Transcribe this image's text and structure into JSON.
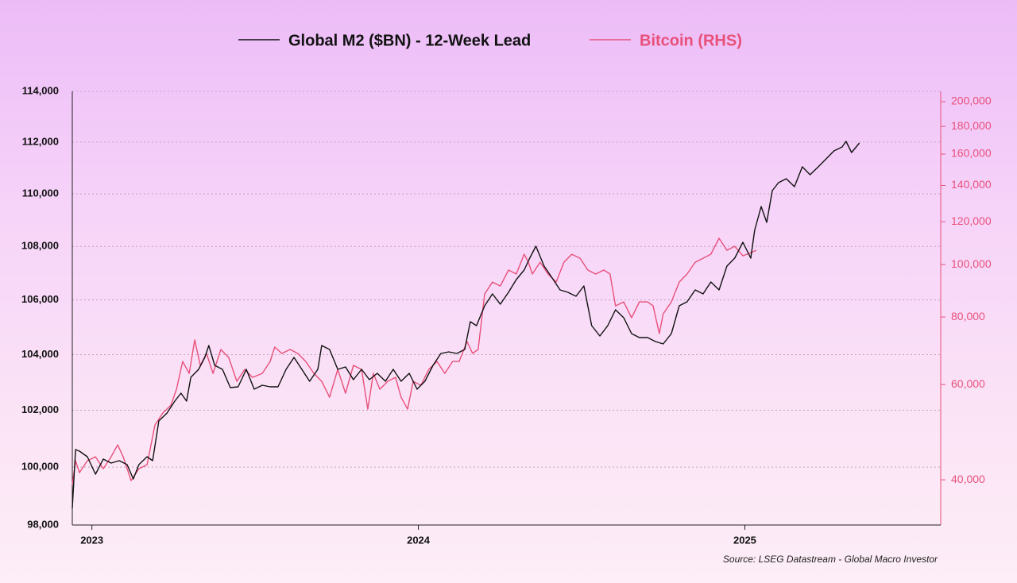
{
  "chart_data": {
    "type": "line",
    "legend": "top",
    "grid": true,
    "ylog": true,
    "y2log": true,
    "xlim": [
      2022.94,
      2025.6
    ],
    "xticks": [
      2023,
      2024,
      2025
    ],
    "ylim": [
      98000,
      114000
    ],
    "yticks": [
      {
        "value": 98000,
        "label": "98,000"
      },
      {
        "value": 100000,
        "label": "100,000"
      },
      {
        "value": 102000,
        "label": "102,000"
      },
      {
        "value": 104000,
        "label": "104,000"
      },
      {
        "value": 106000,
        "label": "106,000"
      },
      {
        "value": 108000,
        "label": "108,000"
      },
      {
        "value": 110000,
        "label": "110,000"
      },
      {
        "value": 112000,
        "label": "112,000"
      },
      {
        "value": 114000,
        "label": "114,000"
      }
    ],
    "y2lim": [
      33000,
      209000
    ],
    "y2ticks": [
      {
        "value": 40000,
        "label": "40,000"
      },
      {
        "value": 60000,
        "label": "60,000"
      },
      {
        "value": 80000,
        "label": "80,000"
      },
      {
        "value": 100000,
        "label": "100,000"
      },
      {
        "value": 120000,
        "label": "120,000"
      },
      {
        "value": 140000,
        "label": "140,000"
      },
      {
        "value": 160000,
        "label": "160,000"
      },
      {
        "value": 180000,
        "label": "180,000"
      },
      {
        "value": 200000,
        "label": "200,000"
      }
    ],
    "source": "Source: LSEG Datastream - Global Macro Investor",
    "series": [
      {
        "name": "Global M2 ($BN) - 12-Week Lead",
        "color": "#111111",
        "axis": "y",
        "x": [
          2022.94,
          2022.95,
          2022.962,
          2022.986,
          2023.011,
          2023.035,
          2023.059,
          2023.084,
          2023.108,
          2023.127,
          2023.144,
          2023.169,
          2023.186,
          2023.205,
          2023.23,
          2023.254,
          2023.273,
          2023.29,
          2023.303,
          2023.327,
          2023.346,
          2023.358,
          2023.376,
          2023.4,
          2023.424,
          2023.448,
          2023.473,
          2023.497,
          2023.522,
          2023.546,
          2023.57,
          2023.595,
          2023.619,
          2023.643,
          2023.667,
          2023.692,
          2023.704,
          2023.728,
          2023.753,
          2023.777,
          2023.801,
          2023.826,
          2023.85,
          2023.874,
          2023.899,
          2023.923,
          2023.947,
          2023.972,
          2023.996,
          2024.02,
          2024.045,
          2024.069,
          2024.093,
          2024.118,
          2024.142,
          2024.159,
          2024.178,
          2024.203,
          2024.227,
          2024.251,
          2024.276,
          2024.3,
          2024.324,
          2024.341,
          2024.36,
          2024.385,
          2024.41,
          2024.434,
          2024.458,
          2024.483,
          2024.507,
          2024.531,
          2024.556,
          2024.58,
          2024.604,
          2024.629,
          2024.653,
          2024.677,
          2024.702,
          2024.726,
          2024.75,
          2024.775,
          2024.799,
          2024.823,
          2024.848,
          2024.872,
          2024.896,
          2024.921,
          2024.945,
          2024.969,
          2024.994,
          2025.018,
          2025.03,
          2025.05,
          2025.067,
          2025.084,
          2025.103,
          2025.127,
          2025.152,
          2025.176,
          2025.2,
          2025.225,
          2025.249,
          2025.273,
          2025.298,
          2025.31,
          2025.327,
          2025.351
        ],
        "values": [
          98572,
          100613,
          100557,
          100363,
          99753,
          100280,
          100140,
          100224,
          100085,
          99588,
          100085,
          100363,
          100224,
          101621,
          101903,
          102328,
          102611,
          102328,
          103181,
          103467,
          103898,
          104331,
          103611,
          103467,
          102811,
          102838,
          103467,
          102753,
          102896,
          102838,
          102838,
          103467,
          103898,
          103467,
          103037,
          103467,
          104331,
          104186,
          103467,
          103554,
          103096,
          103467,
          103096,
          103324,
          103037,
          103467,
          103037,
          103324,
          102753,
          103037,
          103611,
          104043,
          104100,
          104043,
          104186,
          105201,
          105055,
          105786,
          106226,
          105844,
          106285,
          106757,
          107112,
          107559,
          108006,
          107261,
          106816,
          106373,
          106285,
          106138,
          106520,
          105055,
          104678,
          105055,
          105639,
          105347,
          104765,
          104620,
          104620,
          104475,
          104389,
          104765,
          105786,
          105932,
          106373,
          106226,
          106669,
          106373,
          107261,
          107559,
          108157,
          107559,
          108606,
          109512,
          108907,
          110121,
          110426,
          110578,
          110274,
          111040,
          110732,
          111040,
          111348,
          111656,
          111811,
          112028,
          111594,
          111966
        ]
      },
      {
        "name": "Bitcoin (RHS)",
        "color": "#e8507a",
        "axis": "y2",
        "x": [
          2022.94,
          2022.95,
          2022.962,
          2022.986,
          2023.011,
          2023.035,
          2023.059,
          2023.079,
          2023.096,
          2023.12,
          2023.144,
          2023.169,
          2023.193,
          2023.217,
          2023.242,
          2023.259,
          2023.278,
          2023.298,
          2023.315,
          2023.332,
          2023.351,
          2023.371,
          2023.395,
          2023.419,
          2023.444,
          2023.468,
          2023.492,
          2023.522,
          2023.546,
          2023.56,
          2023.582,
          2023.607,
          2023.631,
          2023.655,
          2023.68,
          2023.704,
          2023.728,
          2023.753,
          2023.777,
          2023.801,
          2023.826,
          2023.845,
          2023.862,
          2023.882,
          2023.906,
          2023.93,
          2023.947,
          2023.967,
          2023.984,
          2024.008,
          2024.032,
          2024.057,
          2024.081,
          2024.105,
          2024.125,
          2024.149,
          2024.166,
          2024.183,
          2024.203,
          2024.227,
          2024.251,
          2024.276,
          2024.3,
          2024.324,
          2024.337,
          2024.349,
          2024.373,
          2024.397,
          2024.422,
          2024.446,
          2024.47,
          2024.495,
          2024.519,
          2024.543,
          2024.568,
          2024.587,
          2024.604,
          2024.629,
          2024.653,
          2024.677,
          2024.702,
          2024.719,
          2024.738,
          2024.75,
          2024.775,
          2024.799,
          2024.823,
          2024.848,
          2024.872,
          2024.896,
          2024.921,
          2024.945,
          2024.969,
          2024.994,
          2025.018,
          2025.035
        ],
        "values": [
          39196,
          43381,
          41235,
          43381,
          44118,
          41942,
          44118,
          46415,
          44118,
          39865,
          41942,
          42656,
          50511,
          53141,
          54962,
          58800,
          66203,
          62928,
          72532,
          65095,
          68484,
          62928,
          69653,
          67336,
          60836,
          64002,
          61873,
          62928,
          66203,
          70361,
          68484,
          69653,
          68484,
          66203,
          62928,
          60836,
          56856,
          64002,
          57829,
          65095,
          64002,
          54049,
          62928,
          58800,
          60836,
          61873,
          56856,
          54049,
          60836,
          59816,
          64002,
          66203,
          62928,
          66203,
          66203,
          72044,
          68484,
          69653,
          88228,
          92820,
          91265,
          97675,
          96037,
          104489,
          101013,
          96037,
          101013,
          96037,
          92820,
          101013,
          104489,
          102737,
          97675,
          96037,
          97675,
          96037,
          83869,
          85299,
          79731,
          85299,
          85299,
          83869,
          74521,
          81092,
          85299,
          92820,
          96037,
          101013,
          102737,
          104489,
          111824,
          106268,
          108083,
          103788,
          105201,
          106268
        ]
      }
    ]
  }
}
